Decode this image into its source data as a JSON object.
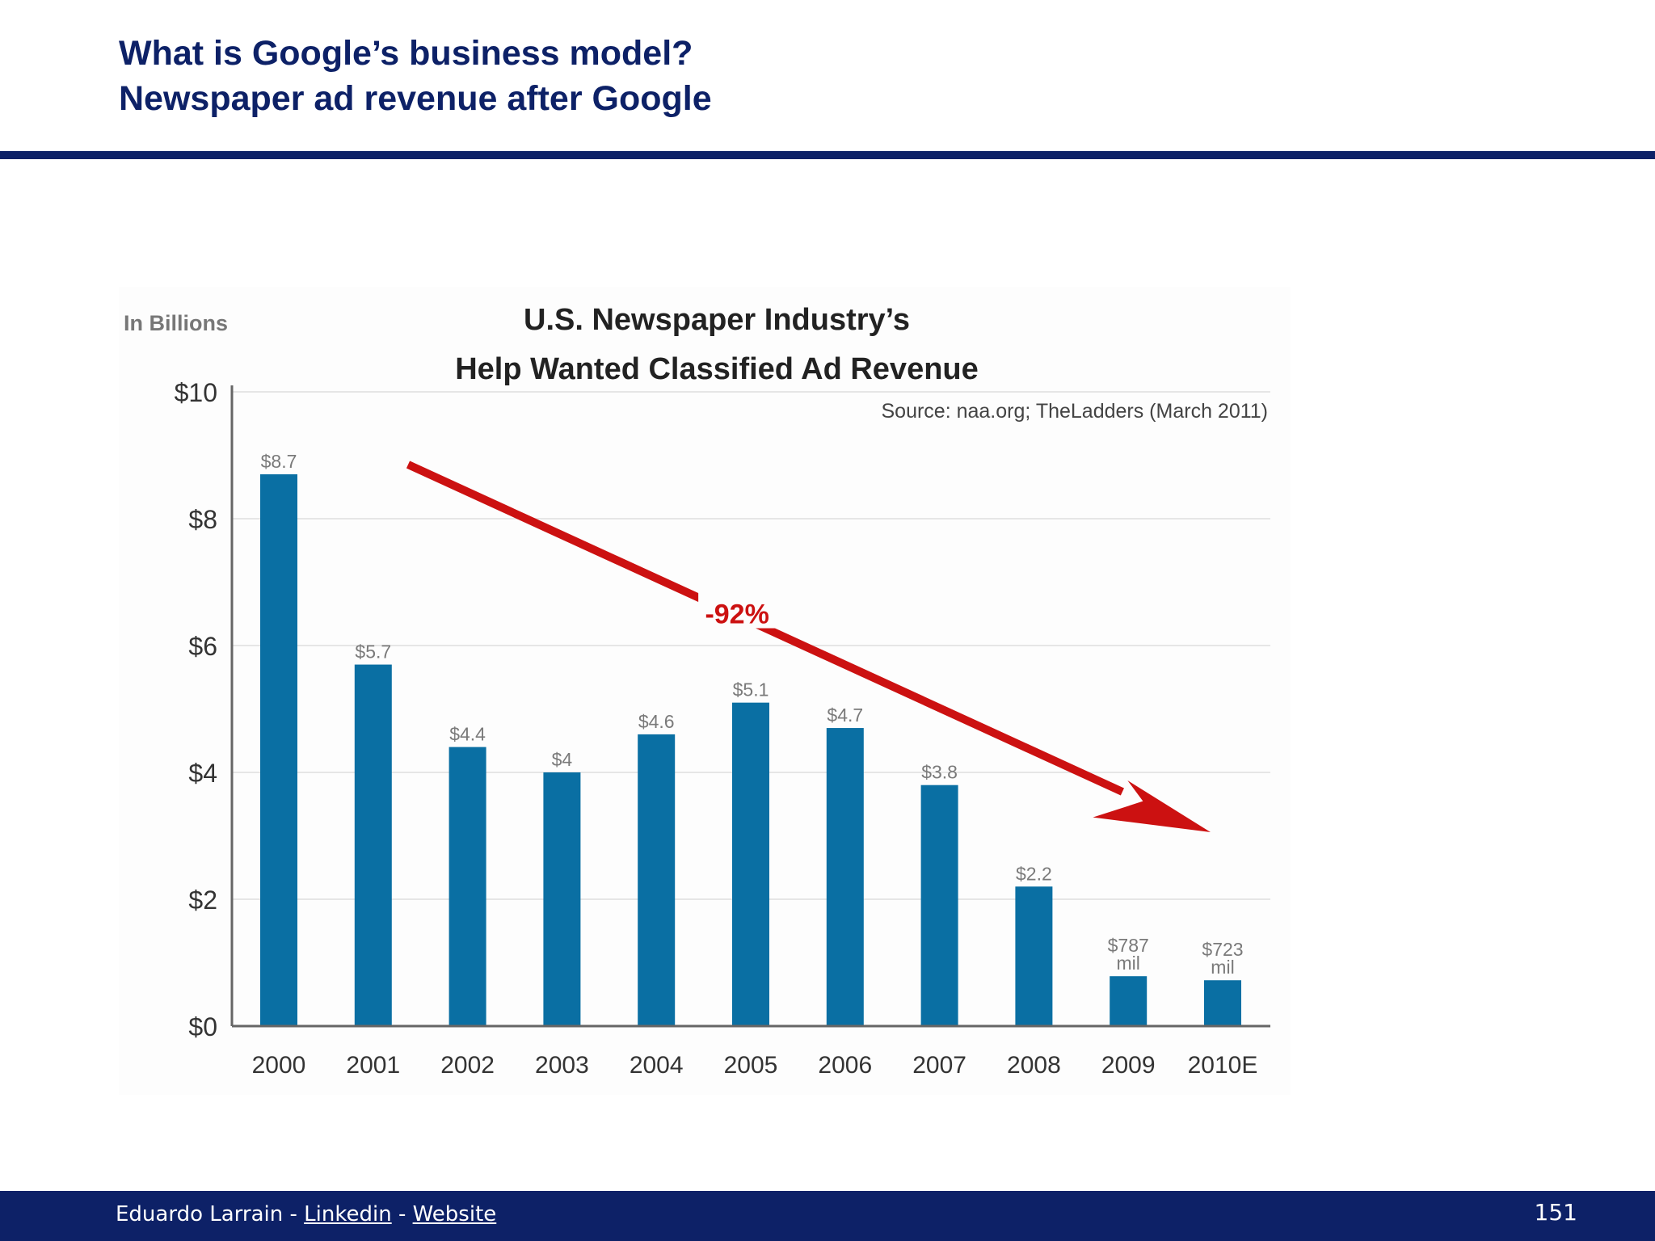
{
  "slide": {
    "title_line1": "What is Google’s business model?",
    "title_line2": "Newspaper ad revenue after Google",
    "accent_color": "#0d2167"
  },
  "footer": {
    "author": "Eduardo Larrain",
    "separator": " - ",
    "linkedin_label": "Linkedin",
    "website_label": "Website",
    "page_number": "151"
  },
  "chart_data": {
    "type": "bar",
    "title": "U.S. Newspaper Industry’s",
    "subtitle": "Help Wanted Classified Ad Revenue",
    "source": "Source: naa.org; TheLadders (March 2011)",
    "unit_label": "In Billions",
    "categories": [
      "2000",
      "2001",
      "2002",
      "2003",
      "2004",
      "2005",
      "2006",
      "2007",
      "2008",
      "2009",
      "2010E"
    ],
    "values": [
      8.7,
      5.7,
      4.4,
      4.0,
      4.6,
      5.1,
      4.7,
      3.8,
      2.2,
      0.787,
      0.723
    ],
    "data_labels": [
      "$8.7",
      "$5.7",
      "$4.4",
      "$4",
      "$4.6",
      "$5.1",
      "$4.7",
      "$3.8",
      "$2.2",
      "$787\nmil",
      "$723\nmil"
    ],
    "ylim": [
      0,
      10
    ],
    "y_ticks": [
      0,
      2,
      4,
      6,
      8,
      10
    ],
    "y_tick_labels": [
      "$0",
      "$2",
      "$4",
      "$6",
      "$8",
      "$10"
    ],
    "grid": true,
    "bar_color": "#0a6fa3",
    "annotation": {
      "label": "-92%",
      "color": "#cc1111",
      "from_category": "2000",
      "to_category": "2010E"
    }
  }
}
